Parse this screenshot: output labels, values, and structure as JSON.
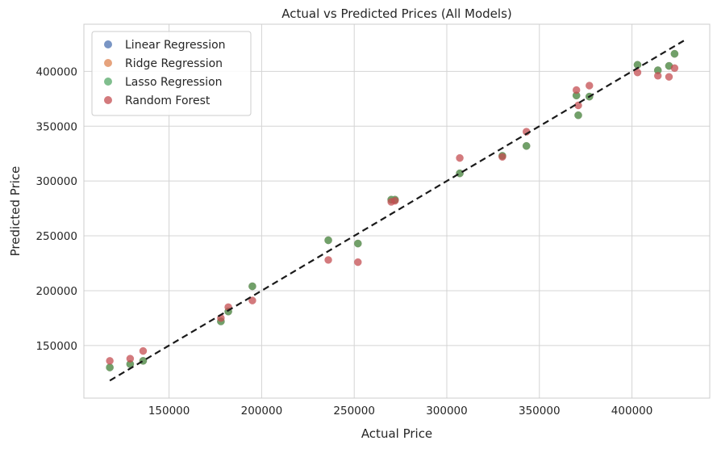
{
  "chart_data": {
    "type": "scatter",
    "title": "Actual vs Predicted Prices (All Models)",
    "xlabel": "Actual Price",
    "ylabel": "Predicted Price",
    "xlim": [
      104000,
      442000
    ],
    "ylim": [
      102000,
      443000
    ],
    "xticks": [
      150000,
      200000,
      250000,
      300000,
      350000,
      400000
    ],
    "yticks": [
      150000,
      200000,
      250000,
      300000,
      350000,
      400000
    ],
    "grid": true,
    "legend_position": "top-left",
    "reference_line": {
      "style": "dashed",
      "color": "#1a1a1a",
      "from": [
        118000,
        118000
      ],
      "to": [
        428000,
        428000
      ]
    },
    "x": [
      118000,
      129000,
      136000,
      178000,
      182000,
      195000,
      236000,
      252000,
      270000,
      272000,
      307000,
      330000,
      343000,
      370000,
      371000,
      377000,
      403000,
      414000,
      420000,
      423000
    ],
    "series": [
      {
        "name": "Linear Regression",
        "color": "#4C72B0",
        "values": [
          130000,
          133000,
          136000,
          172000,
          181000,
          204000,
          246000,
          243000,
          283000,
          283000,
          307000,
          323000,
          332000,
          378000,
          360000,
          377000,
          406000,
          401000,
          405000,
          416000
        ]
      },
      {
        "name": "Ridge Regression",
        "color": "#DD8452",
        "values": [
          130000,
          133000,
          136000,
          172000,
          181000,
          204000,
          246000,
          243000,
          283000,
          283000,
          307000,
          323000,
          332000,
          378000,
          360000,
          377000,
          406000,
          401000,
          405000,
          416000
        ]
      },
      {
        "name": "Lasso Regression",
        "color": "#55A868",
        "values": [
          130000,
          133000,
          136000,
          172000,
          181000,
          204000,
          246000,
          243000,
          283000,
          283000,
          307000,
          323000,
          332000,
          378000,
          360000,
          377000,
          406000,
          401000,
          405000,
          416000
        ]
      },
      {
        "name": "Random Forest",
        "color": "#C44E52",
        "values": [
          136000,
          138000,
          145000,
          175000,
          185000,
          191000,
          228000,
          226000,
          281000,
          282000,
          321000,
          322000,
          345000,
          383000,
          369000,
          387000,
          399000,
          396000,
          395000,
          403000
        ]
      }
    ]
  }
}
